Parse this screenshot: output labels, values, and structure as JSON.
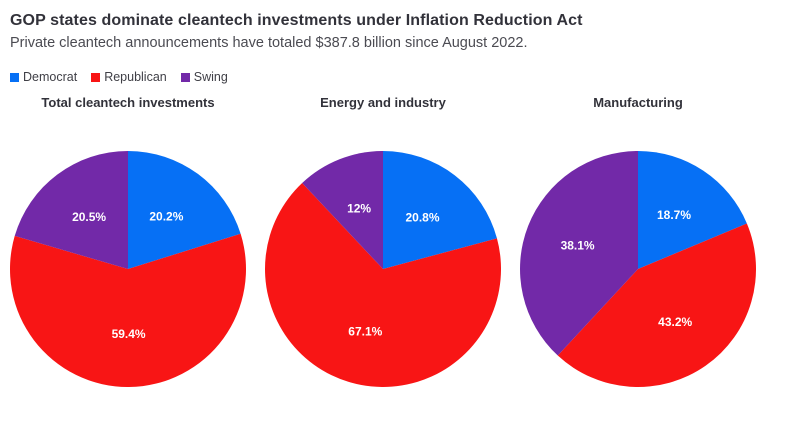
{
  "header": {
    "title": "GOP states dominate cleantech investments under Inflation Reduction Act",
    "subtitle": "Private cleantech announcements have totaled $387.8 billion since August 2022."
  },
  "legend": {
    "items": [
      {
        "label": "Democrat",
        "color": "#0670f5"
      },
      {
        "label": "Republican",
        "color": "#f81515"
      },
      {
        "label": "Swing",
        "color": "#7229a8"
      }
    ]
  },
  "chart_data": [
    {
      "type": "pie",
      "title": "Total cleantech investments",
      "categories": [
        "Democrat",
        "Republican",
        "Swing"
      ],
      "values": [
        20.2,
        59.4,
        20.5
      ],
      "labels": [
        "20.2%",
        "59.4%",
        "20.5%"
      ],
      "colors": [
        "#0670f5",
        "#f81515",
        "#7229a8"
      ],
      "start_angle_deg": 0,
      "direction": "clockwise"
    },
    {
      "type": "pie",
      "title": "Energy and industry",
      "categories": [
        "Democrat",
        "Republican",
        "Swing"
      ],
      "values": [
        20.8,
        67.1,
        12
      ],
      "labels": [
        "20.8%",
        "67.1%",
        "12%"
      ],
      "colors": [
        "#0670f5",
        "#f81515",
        "#7229a8"
      ],
      "start_angle_deg": 0,
      "direction": "clockwise"
    },
    {
      "type": "pie",
      "title": "Manufacturing",
      "categories": [
        "Democrat",
        "Republican",
        "Swing"
      ],
      "values": [
        18.7,
        43.2,
        38.1
      ],
      "labels": [
        "18.7%",
        "43.2%",
        "38.1%"
      ],
      "colors": [
        "#0670f5",
        "#f81515",
        "#7229a8"
      ],
      "start_angle_deg": 0,
      "direction": "clockwise"
    }
  ]
}
